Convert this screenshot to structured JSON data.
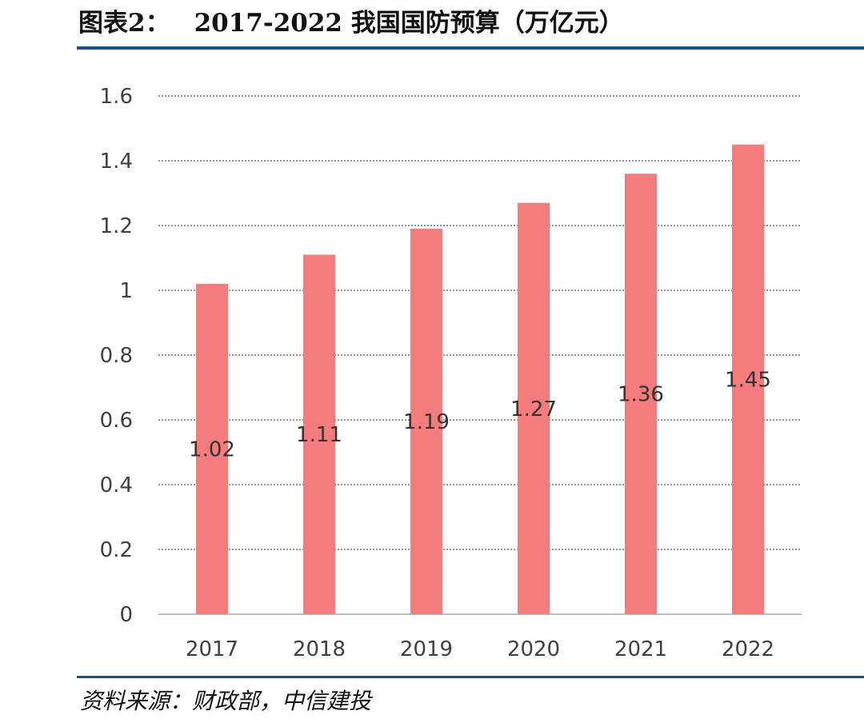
{
  "header": {
    "prefix": "图表2：",
    "title": "2017-2022 我国国防预算（万亿元）"
  },
  "footer": {
    "source": "资料来源：财政部，中信建投"
  },
  "colors": {
    "bar": "#f47c7c",
    "rule": "#1f4e79",
    "grid": "#555555",
    "axis": "#bfbfbf"
  },
  "chart_data": {
    "type": "bar",
    "categories": [
      "2017",
      "2018",
      "2019",
      "2020",
      "2021",
      "2022"
    ],
    "values": [
      1.02,
      1.11,
      1.19,
      1.27,
      1.36,
      1.45
    ],
    "value_labels": [
      "1.02",
      "1.11",
      "1.19",
      "1.27",
      "1.36",
      "1.45"
    ],
    "title": "2017-2022 我国国防预算（万亿元）",
    "xlabel": "",
    "ylabel": "",
    "ylim": [
      0,
      1.6
    ],
    "yticks": [
      0,
      0.2,
      0.4,
      0.6,
      0.8,
      1,
      1.2,
      1.4,
      1.6
    ],
    "ytick_labels": [
      "0",
      "0.2",
      "0.4",
      "0.6",
      "0.8",
      "1",
      "1.2",
      "1.4",
      "1.6"
    ],
    "grid": true,
    "grid_style": "dotted",
    "legend": false,
    "data_label_position": "inside-middle"
  }
}
